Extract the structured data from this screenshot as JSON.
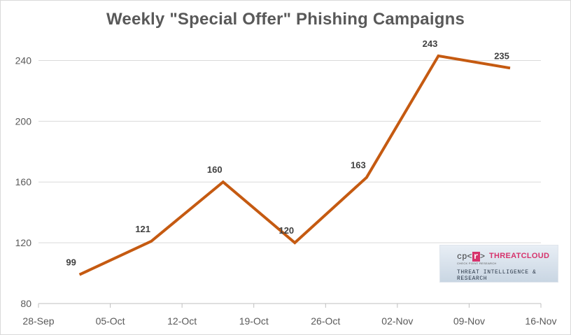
{
  "chart_data": {
    "type": "line",
    "title": "Weekly \"Special Offer\" Phishing Campaigns",
    "xlabel": "",
    "ylabel": "",
    "x_ticks": [
      "28-Sep",
      "05-Oct",
      "12-Oct",
      "19-Oct",
      "26-Oct",
      "02-Nov",
      "09-Nov",
      "16-Nov"
    ],
    "y_ticks": [
      80,
      120,
      160,
      200,
      240
    ],
    "ylim": [
      80,
      260
    ],
    "grid": "horizontal",
    "legend": "none",
    "series": [
      {
        "color": "#c55a11",
        "points": [
          {
            "x": "2020-10-02",
            "y": 99
          },
          {
            "x": "2020-10-09",
            "y": 121
          },
          {
            "x": "2020-10-16",
            "y": 160
          },
          {
            "x": "2020-10-23",
            "y": 120
          },
          {
            "x": "2020-10-30",
            "y": 163
          },
          {
            "x": "2020-11-06",
            "y": 243
          },
          {
            "x": "2020-11-13",
            "y": 235
          }
        ]
      }
    ]
  },
  "logo": {
    "cp_text": "cp<",
    "r_text": "r",
    "cp_close": ">",
    "cp_sub": "CHECK POINT RESEARCH",
    "brand": "THREATCLOUD",
    "tagline": "THREAT INTELLIGENCE & RESEARCH"
  }
}
